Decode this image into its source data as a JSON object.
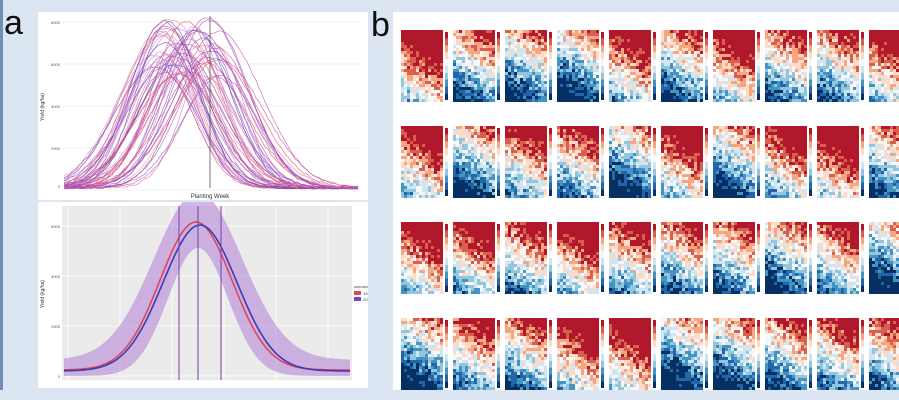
{
  "figure": {
    "panel_a_label": "a",
    "panel_b_label": "b",
    "top_plot": {
      "ylabel": "Yield (kg/ha)",
      "xlabel": "Planting Week",
      "yticks": [
        "8000",
        "6000",
        "4000",
        "2000",
        "0"
      ]
    },
    "bottom_plot": {
      "ylabel": "Yield (kg/ha)",
      "yticks": [
        "6000",
        "4000",
        "2000",
        "0"
      ],
      "legend_title": "scenario",
      "legend_items": [
        "1990s",
        "2050s"
      ]
    },
    "colors": {
      "background": "#dbe6f2",
      "red_series": "#e0465a",
      "purple_series": "#7a44c8",
      "map_red": "#b2182b",
      "map_blue": "#2166ac"
    },
    "map_grid": {
      "rows": 4,
      "cols": 10
    }
  }
}
